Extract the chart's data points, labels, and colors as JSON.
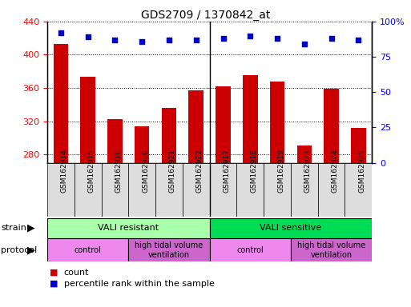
{
  "title": "GDS2709 / 1370842_at",
  "samples": [
    "GSM162914",
    "GSM162915",
    "GSM162916",
    "GSM162920",
    "GSM162921",
    "GSM162922",
    "GSM162917",
    "GSM162918",
    "GSM162919",
    "GSM162923",
    "GSM162924",
    "GSM162925"
  ],
  "counts": [
    413,
    373,
    322,
    314,
    336,
    357,
    362,
    375,
    368,
    291,
    359,
    312
  ],
  "percentiles": [
    92,
    89,
    87,
    86,
    87,
    87,
    88,
    90,
    88,
    84,
    88,
    87
  ],
  "ylim_left": [
    270,
    440
  ],
  "ylim_right": [
    0,
    100
  ],
  "yticks_left": [
    280,
    320,
    360,
    400,
    440
  ],
  "yticks_right": [
    0,
    25,
    50,
    75,
    100
  ],
  "bar_color": "#cc0000",
  "dot_color": "#0000cc",
  "strain_groups": [
    {
      "label": "VALI resistant",
      "start": 0,
      "end": 6,
      "color": "#aaffaa"
    },
    {
      "label": "VALI sensitive",
      "start": 6,
      "end": 12,
      "color": "#00dd55"
    }
  ],
  "protocol_groups": [
    {
      "label": "control",
      "start": 0,
      "end": 3,
      "color": "#ee88ee"
    },
    {
      "label": "high tidal volume\nventilation",
      "start": 3,
      "end": 6,
      "color": "#cc66cc"
    },
    {
      "label": "control",
      "start": 6,
      "end": 9,
      "color": "#ee88ee"
    },
    {
      "label": "high tidal volume\nventilation",
      "start": 9,
      "end": 12,
      "color": "#cc66cc"
    }
  ],
  "legend_count_color": "#cc0000",
  "legend_pct_color": "#0000cc",
  "fig_width": 5.13,
  "fig_height": 3.84,
  "dpi": 100
}
